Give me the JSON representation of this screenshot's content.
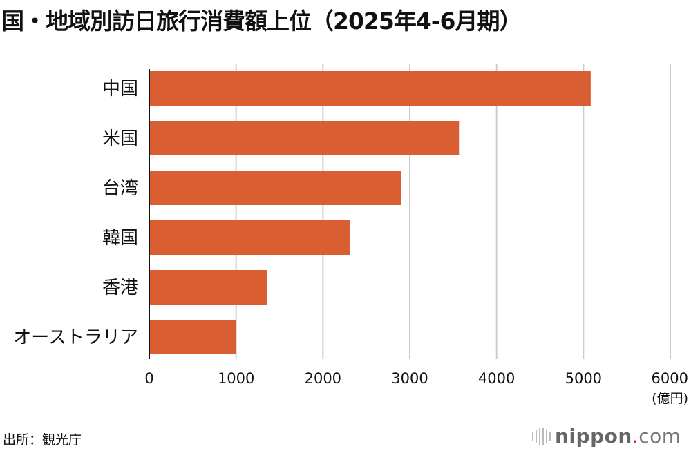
{
  "chart_data": {
    "type": "bar",
    "orientation": "horizontal",
    "title": "国・地域別訪日旅行消費額上位（2025年4-6月期）",
    "categories": [
      "中国",
      "米国",
      "台湾",
      "韓国",
      "香港",
      "オーストラリア"
    ],
    "values": [
      5084,
      3567,
      2899,
      2310,
      1355,
      997
    ],
    "xlim": [
      0,
      6000
    ],
    "xticks": [
      "0",
      "1000",
      "2000",
      "3000",
      "4000",
      "5000",
      "6000"
    ],
    "xunit": "(億円)",
    "grid": true,
    "bar_color": "#d95f33",
    "grid_color": "#cccccc"
  },
  "source": "出所：観光庁",
  "logo": {
    "name": "nippon",
    "dot": ".",
    "tld": "com"
  }
}
